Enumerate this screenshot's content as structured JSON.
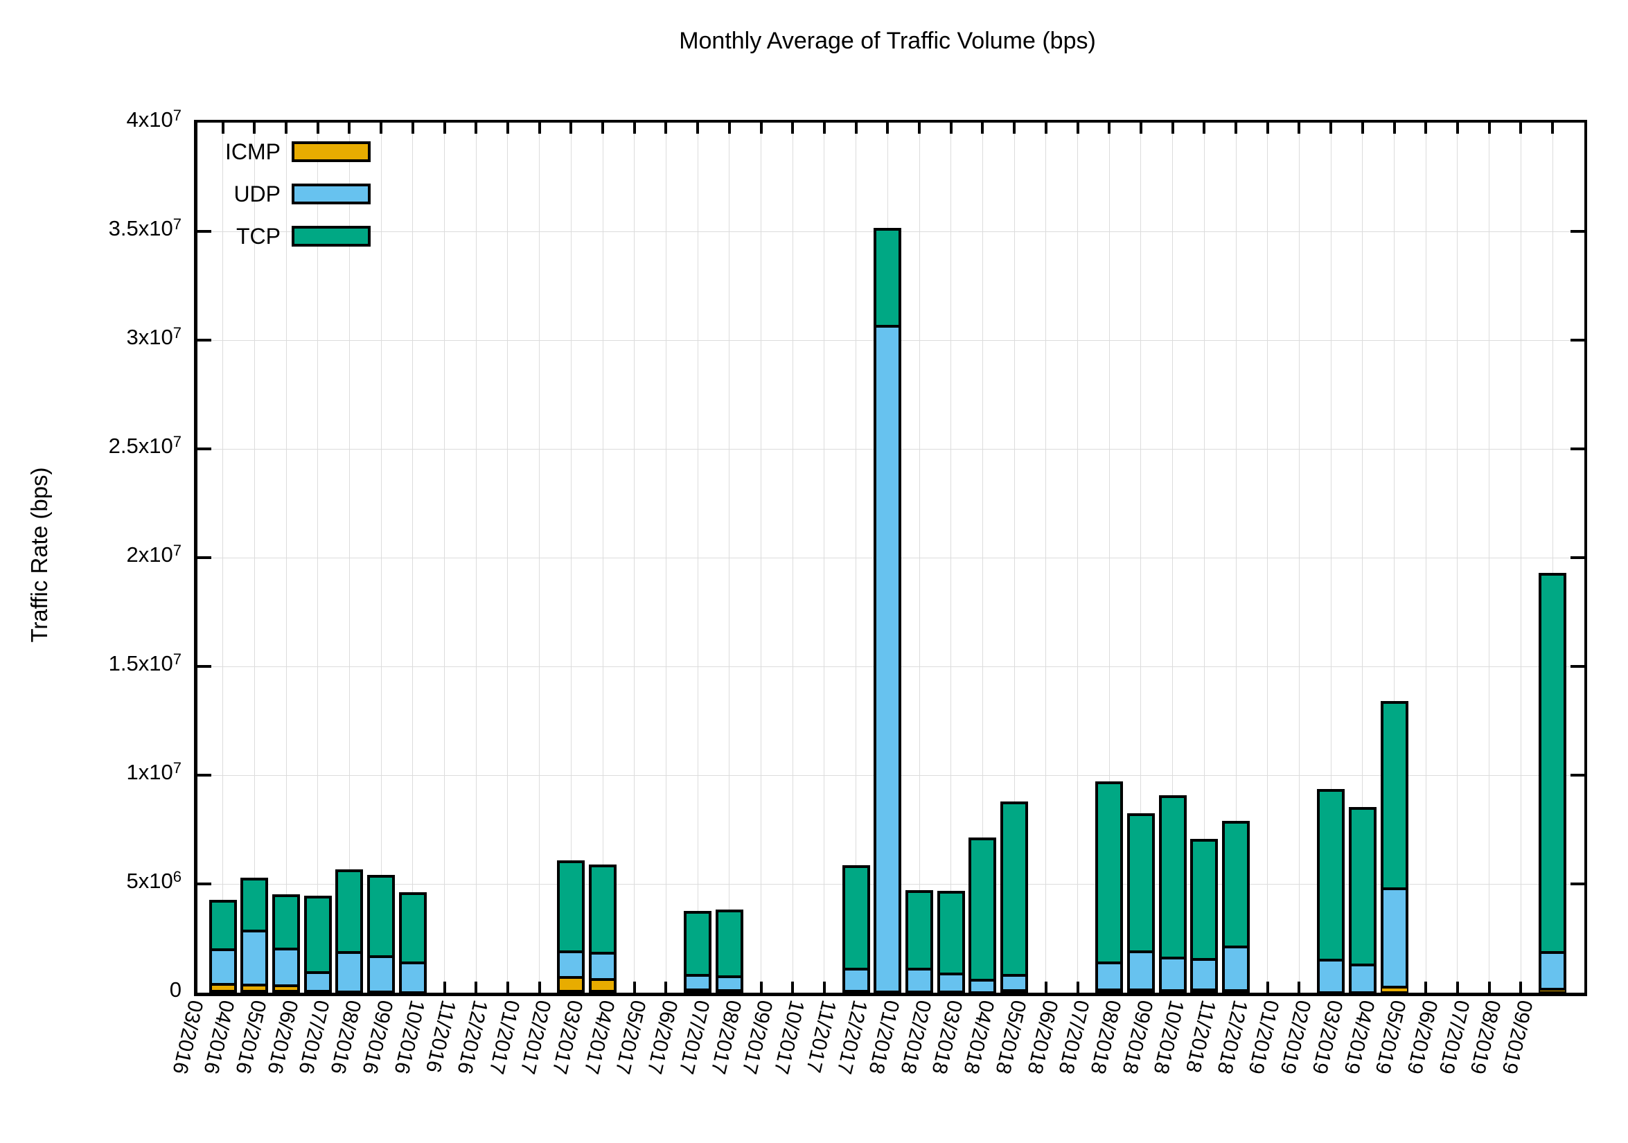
{
  "title": "Monthly Average of Traffic Volume (bps)",
  "chart_data": {
    "type": "bar",
    "stacked": true,
    "title": "Monthly Average of Traffic Volume (bps)",
    "xlabel": "",
    "ylabel": "Traffic Rate (bps)",
    "ylim": [
      0,
      40000000
    ],
    "grid": true,
    "legend_position": "top-left-inside",
    "ytick_values": [
      0,
      5000000,
      10000000,
      15000000,
      20000000,
      25000000,
      30000000,
      35000000,
      40000000
    ],
    "ytick_labels": [
      "0",
      "5x10^6",
      "1x10^7",
      "1.5x10^7",
      "2x10^7",
      "2.5x10^7",
      "3x10^7",
      "3.5x10^7",
      "4x10^7"
    ],
    "categories": [
      "03/2016",
      "04/2016",
      "05/2016",
      "06/2016",
      "07/2016",
      "08/2016",
      "09/2016",
      "10/2016",
      "11/2016",
      "12/2016",
      "01/2017",
      "02/2017",
      "03/2017",
      "04/2017",
      "05/2017",
      "06/2017",
      "07/2017",
      "08/2017",
      "09/2017",
      "10/2017",
      "11/2017",
      "12/2017",
      "01/2018",
      "02/2018",
      "03/2018",
      "04/2018",
      "05/2018",
      "06/2018",
      "07/2018",
      "08/2018",
      "09/2018",
      "10/2018",
      "11/2018",
      "12/2018",
      "01/2019",
      "02/2019",
      "03/2019",
      "04/2019",
      "05/2019",
      "06/2019",
      "07/2019",
      "08/2019",
      "09/2019"
    ],
    "series": [
      {
        "name": "ICMP",
        "color": "#E8AC00",
        "values": [
          450000,
          420000,
          390000,
          130000,
          110000,
          100000,
          70000,
          0,
          0,
          0,
          0,
          780000,
          680000,
          0,
          0,
          180000,
          170000,
          0,
          0,
          0,
          120000,
          110000,
          110000,
          80000,
          70000,
          160000,
          0,
          0,
          180000,
          180000,
          160000,
          180000,
          150000,
          0,
          0,
          50000,
          50000,
          310000,
          0,
          0,
          0,
          0,
          230000
        ]
      },
      {
        "name": "UDP",
        "color": "#67C2EF",
        "values": [
          1590000,
          2470000,
          1690000,
          850000,
          1790000,
          1620000,
          1350000,
          0,
          0,
          0,
          0,
          1160000,
          1210000,
          0,
          0,
          670000,
          620000,
          0,
          0,
          0,
          1040000,
          30600000,
          1030000,
          840000,
          560000,
          700000,
          0,
          0,
          1240000,
          1750000,
          1500000,
          1400000,
          2020000,
          0,
          0,
          1510000,
          1280000,
          4520000,
          0,
          0,
          0,
          0,
          1690000
        ]
      },
      {
        "name": "TCP",
        "color": "#00A884",
        "values": [
          2230000,
          2400000,
          2450000,
          3470000,
          3780000,
          3680000,
          3190000,
          0,
          0,
          0,
          0,
          4140000,
          3990000,
          0,
          0,
          2900000,
          3040000,
          0,
          0,
          0,
          4710000,
          4450000,
          3580000,
          3760000,
          6520000,
          7940000,
          0,
          0,
          8290000,
          6330000,
          7420000,
          5480000,
          5740000,
          0,
          0,
          7800000,
          7220000,
          8590000,
          0,
          0,
          0,
          0,
          17390000
        ]
      }
    ]
  }
}
